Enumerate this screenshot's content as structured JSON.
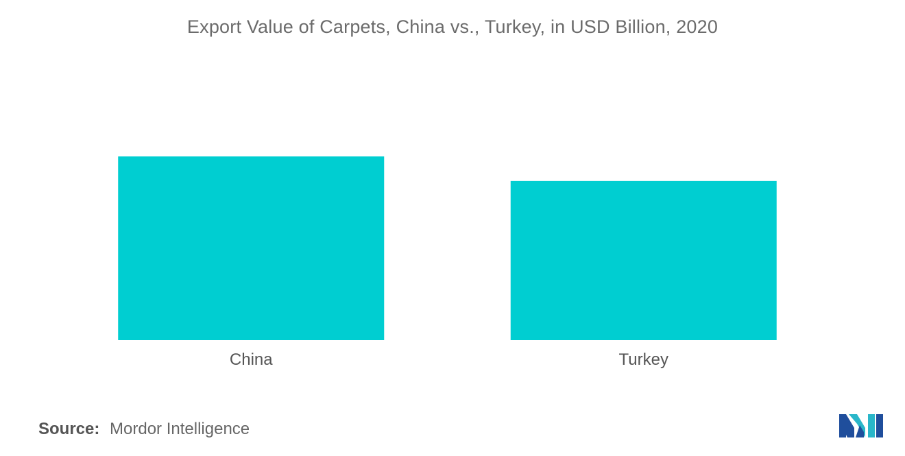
{
  "chart_data": {
    "type": "bar",
    "title": "Export Value of Carpets, China vs., Turkey, in USD Billion,  2020",
    "categories": [
      "China",
      "Turkey"
    ],
    "values": [
      2.7,
      2.34
    ],
    "ylim": [
      0,
      5.0
    ],
    "xlabel": "",
    "ylabel": "",
    "grid": false,
    "legend": "none",
    "bar_color": "#00CED1"
  },
  "source": {
    "label": "Source:",
    "text": "Mordor Intelligence"
  },
  "logo": {
    "icon": "mordor-intelligence-logo",
    "colors": [
      "#1f4e9c",
      "#29b6c9"
    ]
  }
}
